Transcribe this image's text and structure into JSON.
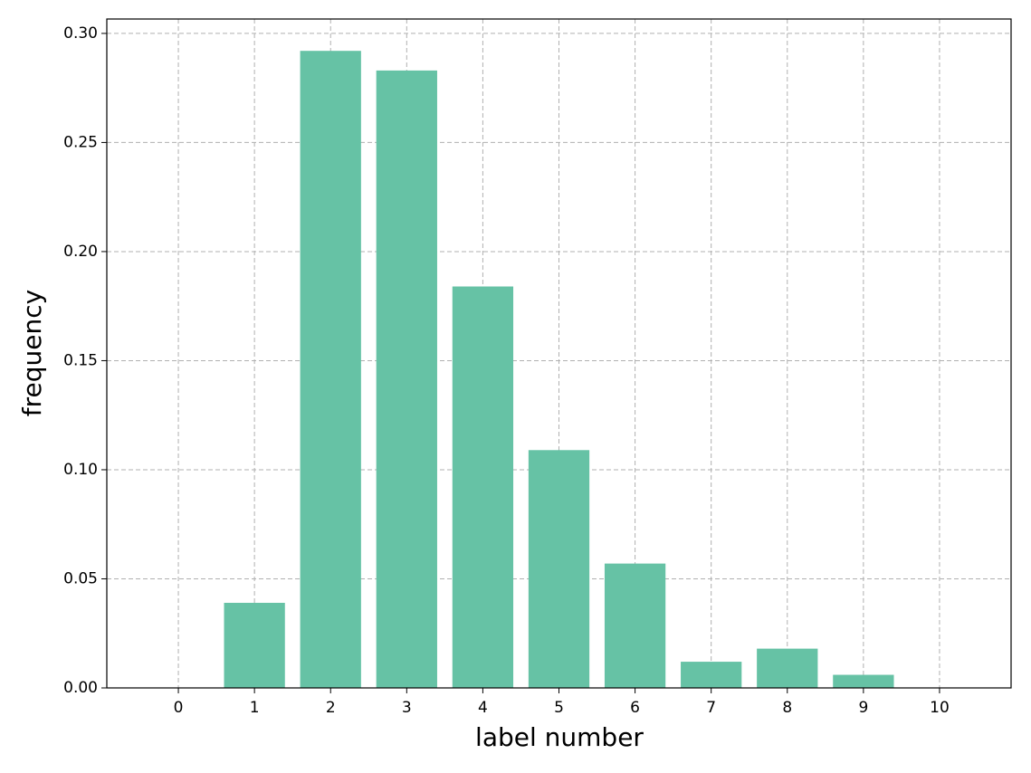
{
  "chart_data": {
    "type": "bar",
    "xlabel": "label number",
    "ylabel": "frequency",
    "x": [
      0,
      1,
      2,
      3,
      4,
      5,
      6,
      7,
      8,
      9,
      10
    ],
    "values": [
      0,
      0.039,
      0.292,
      0.283,
      0.184,
      0.109,
      0.057,
      0.012,
      0.018,
      0.006,
      0
    ],
    "color": "#66c2a5",
    "xlim": [
      -0.94,
      10.94
    ],
    "xticks": [
      0,
      1,
      2,
      3,
      4,
      5,
      6,
      7,
      8,
      9,
      10
    ],
    "ylim": [
      0,
      0.3066
    ],
    "yticks": [
      {
        "value": 0,
        "label": "0.00"
      },
      {
        "value": 0.05,
        "label": "0.05"
      },
      {
        "value": 0.1,
        "label": "0.10"
      },
      {
        "value": 0.15,
        "label": "0.15"
      },
      {
        "value": 0.2,
        "label": "0.20"
      },
      {
        "value": 0.25,
        "label": "0.25"
      },
      {
        "value": 0.3,
        "label": "0.30"
      }
    ],
    "grid": true
  }
}
